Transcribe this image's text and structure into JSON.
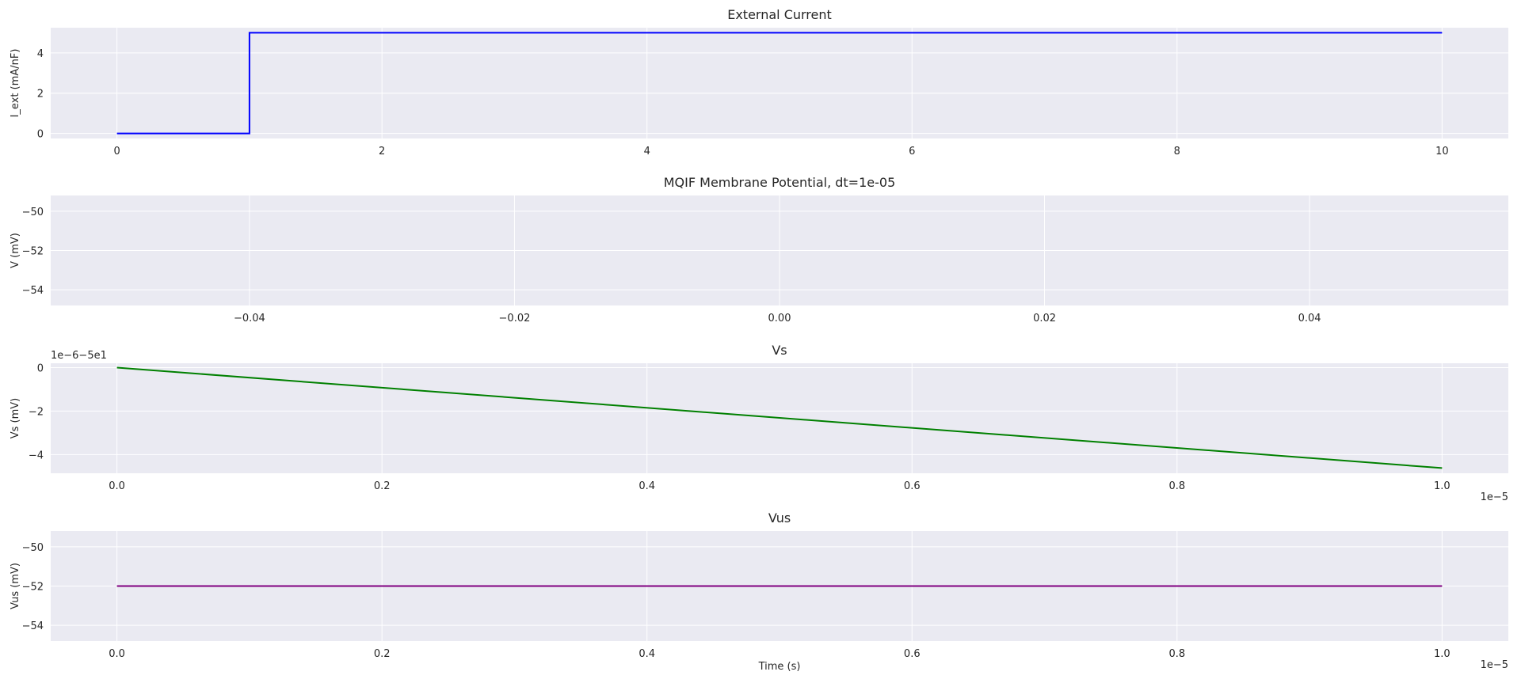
{
  "figure": {
    "background": "#ffffff",
    "axes_facecolor": "#eaeaf2",
    "grid_color": "#ffffff"
  },
  "chart_data": [
    {
      "type": "line",
      "title": "External Current",
      "xlabel": "",
      "ylabel": "I_ext (mA/nF)",
      "xlim": [
        -0.5,
        10.5
      ],
      "ylim": [
        -0.25,
        5.25
      ],
      "xticks": [
        0,
        2,
        4,
        6,
        8,
        10
      ],
      "xtick_labels": [
        "0",
        "2",
        "4",
        "6",
        "8",
        "10"
      ],
      "yticks": [
        0,
        2,
        4
      ],
      "ytick_labels": [
        "0",
        "2",
        "4"
      ],
      "grid": true,
      "series": [
        {
          "color": "#0000ff",
          "x": [
            0,
            1,
            1,
            10
          ],
          "y": [
            0,
            0,
            5,
            5
          ]
        }
      ]
    },
    {
      "type": "line",
      "title": "MQIF Membrane Potential, dt=1e-05",
      "xlabel": "",
      "ylabel": "V (mV)",
      "xlim": [
        -0.055,
        0.055
      ],
      "ylim": [
        -54.8,
        -49.2
      ],
      "xticks": [
        -0.04,
        -0.02,
        0.0,
        0.02,
        0.04
      ],
      "xtick_labels": [
        "−0.04",
        "−0.02",
        "0.00",
        "0.02",
        "0.04"
      ],
      "yticks": [
        -50,
        -52,
        -54
      ],
      "ytick_labels": [
        "−50",
        "−52",
        "−54"
      ],
      "grid": true,
      "series": []
    },
    {
      "type": "line",
      "title": "Vs",
      "xlabel": "",
      "ylabel": "Vs (mV)",
      "offset_text": "1e−6−5e1",
      "x_scale_text": "1e−5",
      "xlim": [
        -0.5,
        10.5
      ],
      "ylim": [
        -4.86,
        0.2
      ],
      "xticks": [
        0,
        2,
        4,
        6,
        8,
        10
      ],
      "xtick_labels": [
        "0.0",
        "0.2",
        "0.4",
        "0.6",
        "0.8",
        "1.0"
      ],
      "yticks": [
        0,
        -2,
        -4
      ],
      "ytick_labels": [
        "0",
        "−2",
        "−4"
      ],
      "grid": true,
      "series": [
        {
          "color": "#008000",
          "x": [
            0,
            10
          ],
          "y": [
            0,
            -4.62
          ]
        }
      ]
    },
    {
      "type": "line",
      "title": "Vus",
      "xlabel": "Time (s)",
      "ylabel": "Vus (mV)",
      "x_scale_text": "1e−5",
      "xlim": [
        -0.5,
        10.5
      ],
      "ylim": [
        -54.8,
        -49.2
      ],
      "xticks": [
        0,
        2,
        4,
        6,
        8,
        10
      ],
      "xtick_labels": [
        "0.0",
        "0.2",
        "0.4",
        "0.6",
        "0.8",
        "1.0"
      ],
      "yticks": [
        -50,
        -52,
        -54
      ],
      "ytick_labels": [
        "−50",
        "−52",
        "−54"
      ],
      "grid": true,
      "series": [
        {
          "color": "#800080",
          "x": [
            0,
            10
          ],
          "y": [
            -52,
            -52
          ]
        }
      ]
    }
  ]
}
